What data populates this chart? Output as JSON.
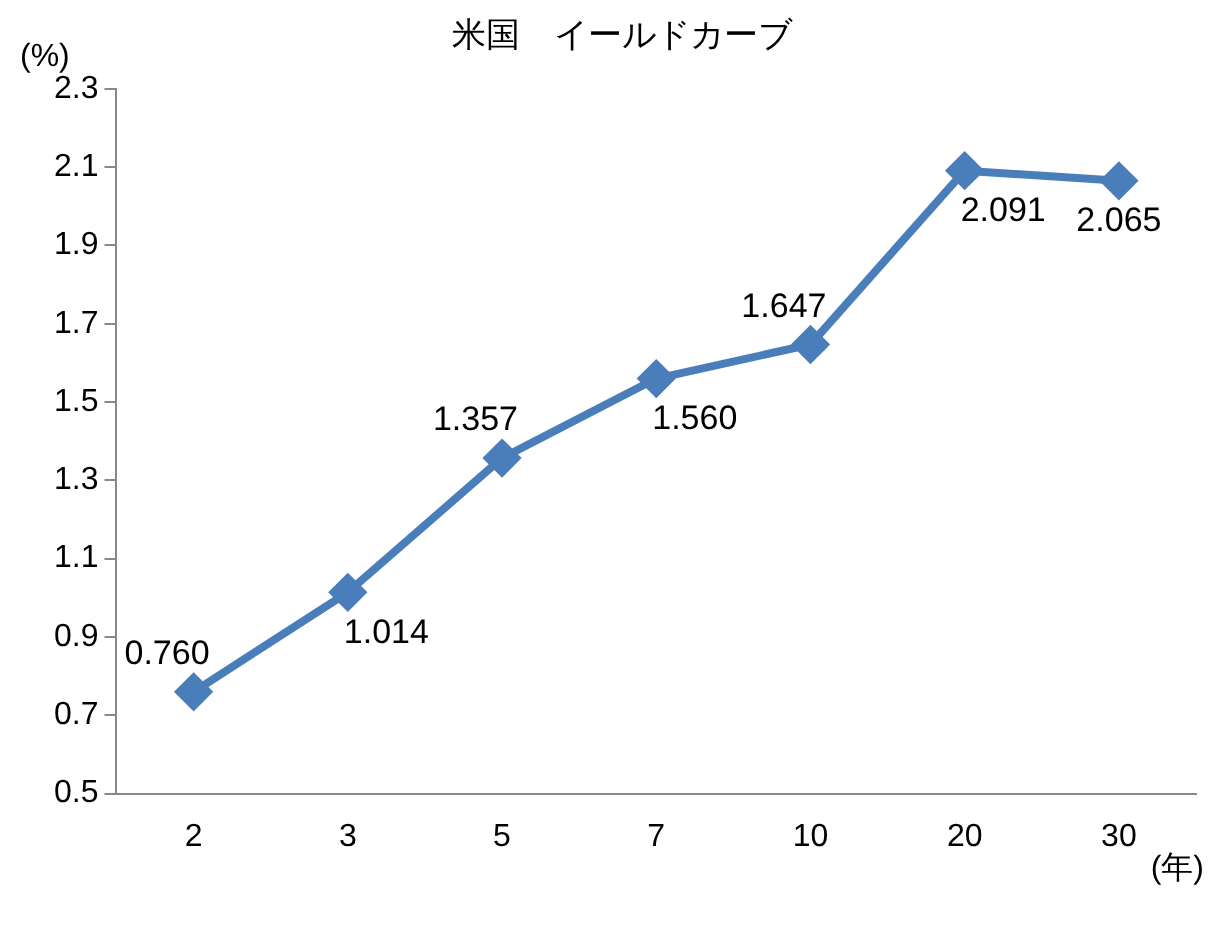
{
  "chart_data": {
    "type": "line",
    "title": "米国　イールドカーブ",
    "ylabel": "(%)",
    "xlabel": "(年)",
    "categories": [
      "2",
      "3",
      "5",
      "7",
      "10",
      "20",
      "30"
    ],
    "series": [
      {
        "color": "#4a7ebb",
        "values": [
          0.76,
          1.014,
          1.357,
          1.56,
          1.647,
          2.091,
          2.065
        ],
        "value_labels": [
          "0.760",
          "1.014",
          "1.357",
          "1.560",
          "1.647",
          "2.091",
          "2.065"
        ]
      }
    ],
    "ylim": [
      0.5,
      2.3
    ],
    "yticks": [
      0.5,
      0.7,
      0.9,
      1.1,
      1.3,
      1.5,
      1.7,
      1.9,
      2.1,
      2.3
    ],
    "grid": false,
    "legend": false,
    "marker": "diamond",
    "line_style": "solid"
  }
}
